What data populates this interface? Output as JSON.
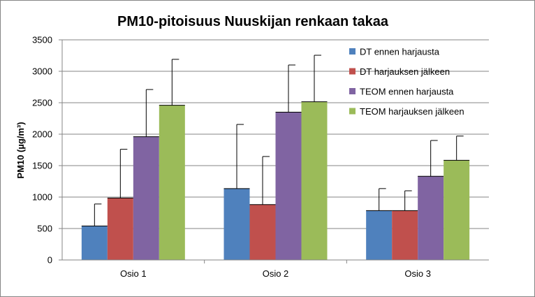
{
  "chart_data": {
    "type": "bar",
    "title": "PM10-pitoisuus Nuuskijan renkaan takaa",
    "ylabel": "PM10 (µg/m³)",
    "xlabel": "",
    "categories": [
      "Osio 1",
      "Osio 2",
      "Osio 3"
    ],
    "ylim": [
      0,
      3500
    ],
    "yticks": [
      0,
      500,
      1000,
      1500,
      2000,
      2500,
      3000,
      3500
    ],
    "grid": "horizontal",
    "legend_position": "right",
    "series": [
      {
        "name": "DT ennen harjausta",
        "color": "#4F81BD",
        "values": [
          540,
          1135,
          785
        ],
        "errors": [
          350,
          1020,
          350
        ]
      },
      {
        "name": "DT harjauksen jälkeen",
        "color": "#C0504D",
        "values": [
          985,
          880,
          785
        ],
        "errors": [
          775,
          765,
          315
        ]
      },
      {
        "name": "TEOM ennen harjausta",
        "color": "#8064A2",
        "values": [
          1960,
          2350,
          1330
        ],
        "errors": [
          750,
          750,
          570
        ]
      },
      {
        "name": "TEOM harjauksen jälkeen",
        "color": "#9BBB59",
        "values": [
          2460,
          2515,
          1585
        ],
        "errors": [
          730,
          740,
          385
        ]
      }
    ]
  }
}
